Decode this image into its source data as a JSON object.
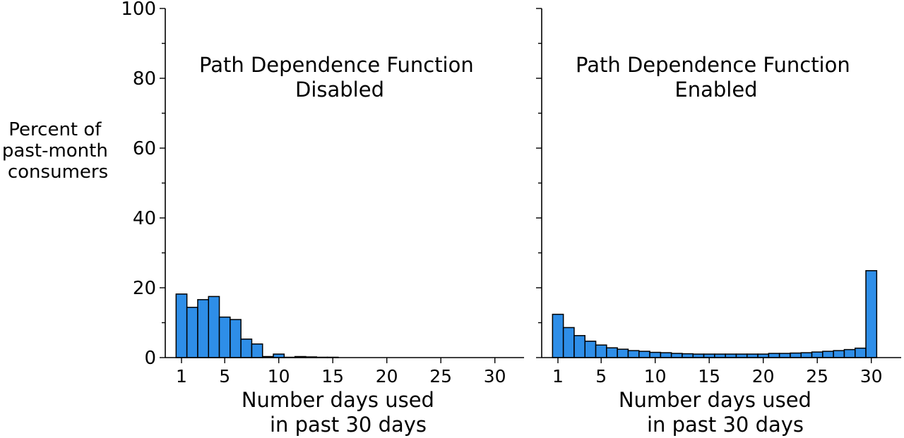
{
  "figure": {
    "ylabel_lines": [
      "Percent of",
      "past-month",
      "consumers"
    ],
    "xlabel_lines": [
      "Number days used",
      "in past 30 days"
    ],
    "colors": {
      "bar_fill": "#2E8EE8",
      "bar_edge": "#000000",
      "axes": "#000000"
    }
  },
  "chart_data": [
    {
      "type": "bar",
      "panel": "left",
      "title_lines": [
        "Path Dependence Function",
        "Disabled"
      ],
      "x": [
        1,
        2,
        3,
        4,
        5,
        6,
        7,
        8,
        9,
        10,
        11,
        12,
        13,
        14,
        15,
        16,
        17,
        18,
        19,
        20,
        21,
        22,
        23,
        24,
        25,
        26,
        27,
        28,
        29,
        30
      ],
      "values": [
        18.2,
        14.4,
        16.6,
        17.5,
        11.6,
        10.9,
        5.3,
        3.9,
        0.3,
        1.0,
        0.1,
        0.3,
        0.2,
        0.1,
        0.1,
        0.05,
        0.05,
        0.05,
        0.05,
        0.05,
        0.05,
        0.05,
        0.05,
        0.05,
        0.05,
        0.05,
        0.05,
        0.05,
        0.05,
        0.05
      ],
      "xticks": [
        1,
        5,
        10,
        15,
        20,
        25,
        30
      ],
      "yticks": [
        0,
        20,
        40,
        60,
        80,
        100
      ],
      "yticks_labeled": true,
      "xlim": [
        0.5,
        30.5
      ],
      "ylim": [
        0,
        100
      ],
      "grid": false
    },
    {
      "type": "bar",
      "panel": "right",
      "title_lines": [
        "Path Dependence Function",
        "Enabled"
      ],
      "x": [
        1,
        2,
        3,
        4,
        5,
        6,
        7,
        8,
        9,
        10,
        11,
        12,
        13,
        14,
        15,
        16,
        17,
        18,
        19,
        20,
        21,
        22,
        23,
        24,
        25,
        26,
        27,
        28,
        29,
        30
      ],
      "values": [
        12.4,
        8.6,
        6.3,
        4.7,
        3.6,
        2.8,
        2.4,
        2.0,
        1.8,
        1.5,
        1.4,
        1.2,
        1.1,
        1.0,
        1.0,
        1.0,
        1.0,
        1.0,
        1.0,
        1.0,
        1.2,
        1.2,
        1.3,
        1.4,
        1.6,
        1.8,
        2.0,
        2.3,
        2.7,
        24.9
      ],
      "xticks": [
        1,
        5,
        10,
        15,
        20,
        25,
        30
      ],
      "yticks": [
        0,
        20,
        40,
        60,
        80,
        100
      ],
      "yticks_labeled": false,
      "xlim": [
        0.5,
        30.5
      ],
      "ylim": [
        0,
        100
      ],
      "grid": false
    }
  ]
}
